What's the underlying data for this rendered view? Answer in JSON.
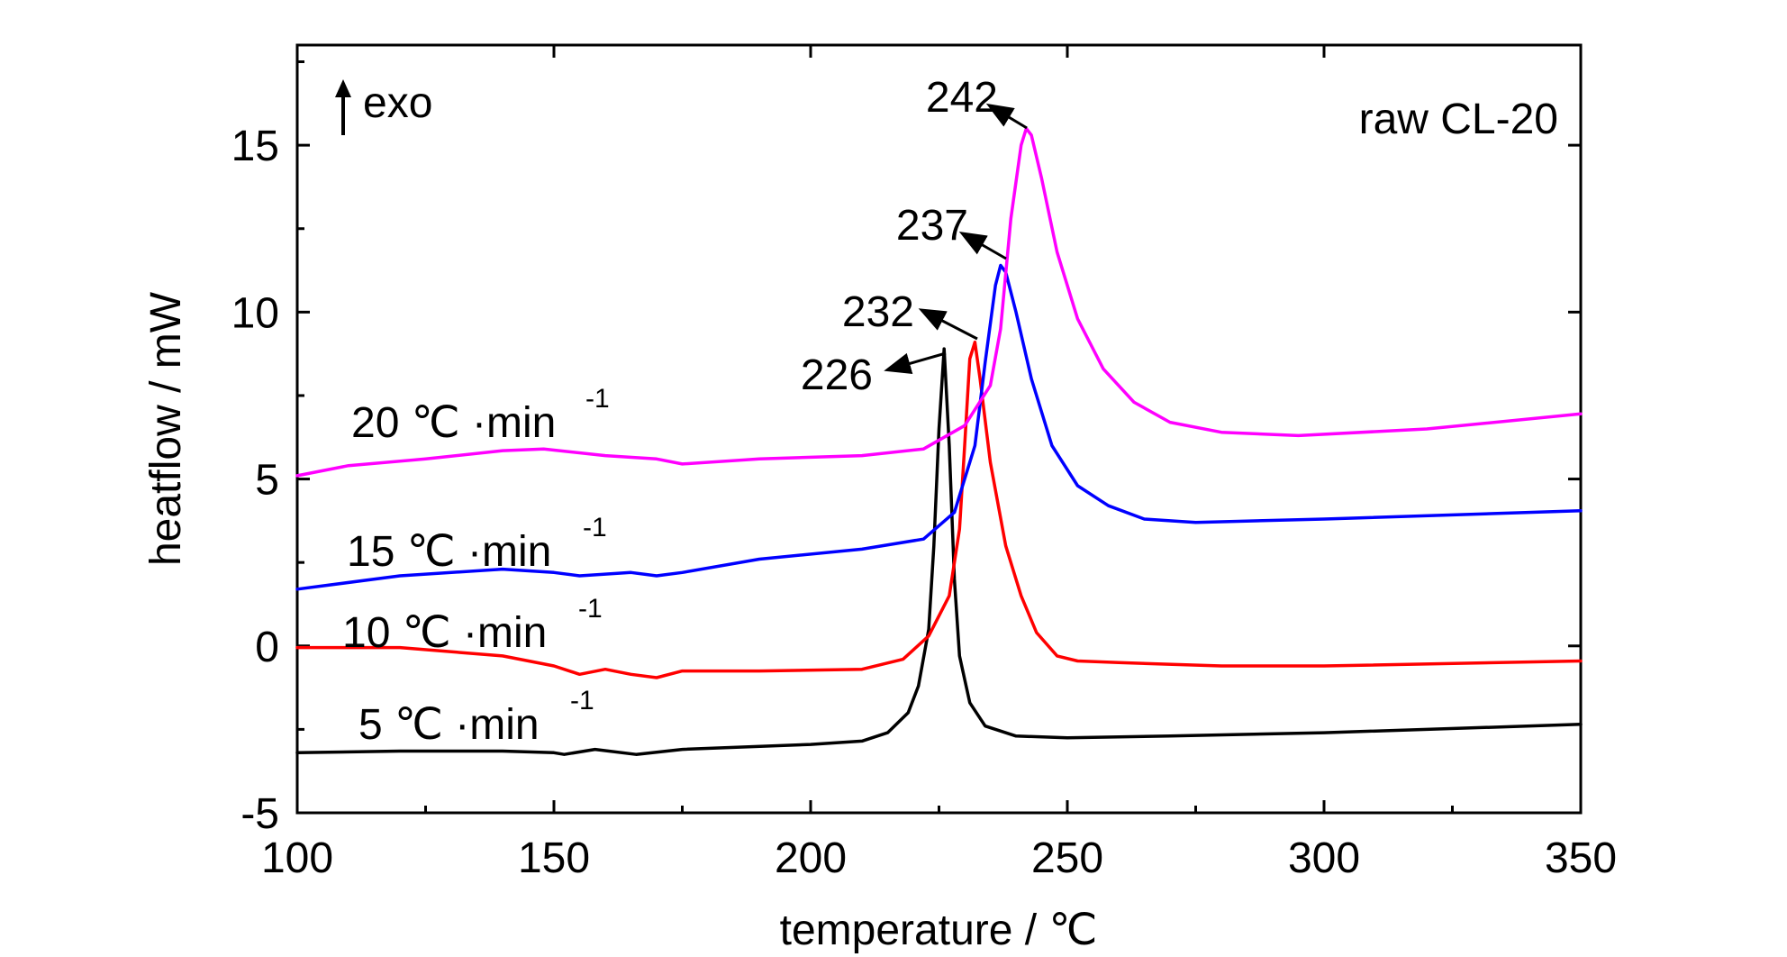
{
  "chart_data": {
    "type": "line",
    "xlabel": "temperature / ℃",
    "ylabel": "heatflow / mW",
    "xlim": [
      100,
      350
    ],
    "ylim": [
      -5,
      18
    ],
    "xticks": [
      100,
      150,
      200,
      250,
      300,
      350
    ],
    "yticks": [
      -5,
      0,
      5,
      10,
      15
    ],
    "grid": false,
    "annotations": {
      "sample": "raw CL-20",
      "exo": "exo",
      "peaks": [
        "226",
        "232",
        "237",
        "242"
      ]
    },
    "series": [
      {
        "rate": "5",
        "unit": "℃ ·min",
        "exp": "-1",
        "color": "#000000",
        "x": [
          100,
          120,
          140,
          150,
          152,
          158,
          166,
          175,
          200,
          210,
          215,
          219,
          221,
          223,
          224,
          225,
          226,
          227,
          228,
          229,
          231,
          234,
          240,
          250,
          270,
          300,
          350
        ],
        "y": [
          -3.2,
          -3.15,
          -3.15,
          -3.2,
          -3.25,
          -3.1,
          -3.25,
          -3.1,
          -2.95,
          -2.85,
          -2.6,
          -2.0,
          -1.2,
          0.5,
          3.0,
          6.5,
          8.9,
          6.0,
          2.0,
          -0.3,
          -1.7,
          -2.4,
          -2.7,
          -2.75,
          -2.7,
          -2.6,
          -2.35
        ]
      },
      {
        "rate": "10",
        "unit": "℃ ·min",
        "exp": "-1",
        "color": "#ff0000",
        "x": [
          100,
          120,
          140,
          150,
          155,
          160,
          165,
          170,
          175,
          190,
          210,
          218,
          223,
          227,
          229,
          230,
          231,
          232,
          233,
          235,
          238,
          241,
          244,
          248,
          252,
          260,
          280,
          300,
          350
        ],
        "y": [
          -0.05,
          -0.05,
          -0.3,
          -0.6,
          -0.85,
          -0.7,
          -0.85,
          -0.95,
          -0.75,
          -0.75,
          -0.7,
          -0.4,
          0.3,
          1.5,
          3.5,
          6.0,
          8.6,
          9.1,
          8.0,
          5.5,
          3.0,
          1.5,
          0.4,
          -0.3,
          -0.45,
          -0.5,
          -0.6,
          -0.6,
          -0.45
        ]
      },
      {
        "rate": "15",
        "unit": "℃ ·min",
        "exp": "-1",
        "color": "#0000ff",
        "x": [
          100,
          120,
          140,
          150,
          155,
          165,
          170,
          175,
          190,
          210,
          222,
          228,
          232,
          234,
          236,
          237,
          238,
          240,
          243,
          247,
          252,
          258,
          265,
          275,
          300,
          350
        ],
        "y": [
          1.7,
          2.1,
          2.3,
          2.2,
          2.1,
          2.2,
          2.1,
          2.2,
          2.6,
          2.9,
          3.2,
          4.0,
          6.0,
          8.5,
          10.8,
          11.4,
          11.2,
          10.0,
          8.0,
          6.0,
          4.8,
          4.2,
          3.8,
          3.7,
          3.8,
          4.05
        ]
      },
      {
        "rate": "20",
        "unit": "℃ ·min",
        "exp": "-1",
        "color": "#ff00ff",
        "x": [
          100,
          110,
          125,
          140,
          148,
          160,
          170,
          175,
          190,
          210,
          222,
          230,
          235,
          237,
          239,
          241,
          242,
          243,
          245,
          248,
          252,
          257,
          263,
          270,
          280,
          295,
          320,
          350
        ],
        "y": [
          5.1,
          5.4,
          5.6,
          5.85,
          5.9,
          5.7,
          5.6,
          5.45,
          5.6,
          5.7,
          5.9,
          6.6,
          7.8,
          9.5,
          12.8,
          15.0,
          15.5,
          15.3,
          14.0,
          11.8,
          9.8,
          8.3,
          7.3,
          6.7,
          6.4,
          6.3,
          6.5,
          6.95
        ]
      }
    ]
  }
}
